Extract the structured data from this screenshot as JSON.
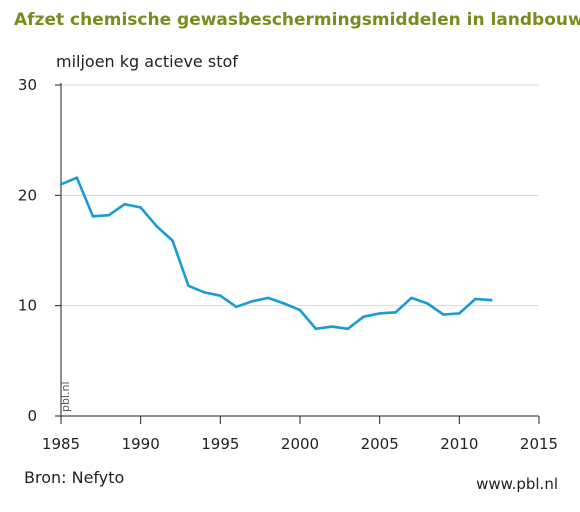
{
  "chart_data": {
    "type": "line",
    "title": "Afzet chemische gewasbeschermingsmiddelen in landbouw",
    "ylabel": "miljoen kg actieve stof",
    "xlim": [
      1985,
      2015
    ],
    "ylim": [
      0,
      30
    ],
    "x_ticks": [
      1985,
      1990,
      1995,
      2000,
      2005,
      2010,
      2015
    ],
    "y_ticks": [
      0,
      10,
      20,
      30
    ],
    "grid": true,
    "color": "#1a9ad6",
    "x": [
      1985,
      1986,
      1987,
      1988,
      1989,
      1990,
      1991,
      1992,
      1993,
      1994,
      1995,
      1996,
      1997,
      1998,
      1999,
      2000,
      2001,
      2002,
      2003,
      2004,
      2005,
      2006,
      2007,
      2008,
      2009,
      2010,
      2011,
      2012
    ],
    "values": [
      21.0,
      21.6,
      18.1,
      18.2,
      19.2,
      18.9,
      17.2,
      15.9,
      11.8,
      11.2,
      10.9,
      9.9,
      10.4,
      10.7,
      10.2,
      9.6,
      7.9,
      8.1,
      7.9,
      9.0,
      9.3,
      9.4,
      10.7,
      10.2,
      9.2,
      9.3,
      10.6,
      10.5
    ]
  },
  "source": "Bron: Nefyto",
  "website": "www.pbl.nl",
  "watermark": "pbl.nl"
}
